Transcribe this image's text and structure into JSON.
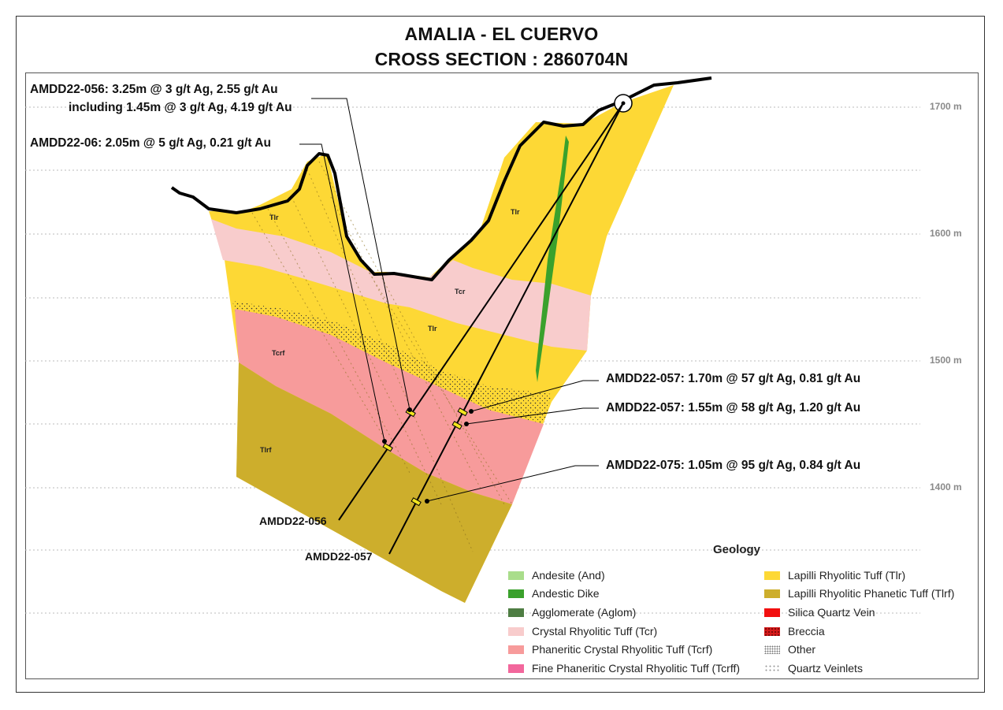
{
  "title_line1": "AMALIA - EL CUERVO",
  "title_line2": "CROSS SECTION : 2860704N",
  "elevations": [
    {
      "label": "1700 m",
      "value": 1700
    },
    {
      "label": "1600 m",
      "value": 1600
    },
    {
      "label": "1500 m",
      "value": 1500
    },
    {
      "label": "1400 m",
      "value": 1400
    }
  ],
  "annotations": {
    "amdd22_056_line1": "AMDD22-056:  3.25m @ 3 g/t Ag, 2.55 g/t Au",
    "amdd22_056_line2": "including 1.45m @ 3 g/t Ag, 4.19 g/t Au",
    "amdd22_06": "AMDD22-06:  2.05m @ 5 g/t Ag, 0.21 g/t Au",
    "amdd22_057_a": "AMDD22-057:  1.70m @ 57 g/t Ag, 0.81 g/t Au",
    "amdd22_057_b": "AMDD22-057: 1.55m @ 58 g/t Ag, 1.20 g/t Au",
    "amdd22_075": "AMDD22-075: 1.05m @ 95 g/t Ag, 0.84 g/t Au"
  },
  "drill_holes": {
    "hole_056": "AMDD22-056",
    "hole_057": "AMDD22-057"
  },
  "unit_labels": {
    "tlr_top": "Tlr",
    "tlr_right": "Tlr",
    "tlr_mid": "Tlr",
    "tcr": "Tcr",
    "tcrf": "Tcrf",
    "tlrf": "Tlrf"
  },
  "legend": {
    "title": "Geology",
    "items": [
      {
        "label": "Andesite (And)",
        "color": "#a9dd8b"
      },
      {
        "label": "Andestic Dike",
        "color": "#3aa12c"
      },
      {
        "label": "Agglomerate (Aglom)",
        "color": "#4e7d43"
      },
      {
        "label": "Crystal Rhyolitic Tuff (Tcr)",
        "color": "#f8cccc"
      },
      {
        "label": "Phaneritic Crystal Rhyolitic Tuff (Tcrf)",
        "color": "#f79b9b"
      },
      {
        "label": "Fine Phaneritic Crystal Rhyolitic Tuff (Tcrff)",
        "color": "#f2679c"
      },
      {
        "label": "Lapilli Rhyolitic Tuff (Tlr)",
        "color": "#fdd835"
      },
      {
        "label": "Lapilli Rhyolitic Phanetic Tuff (Tlrf)",
        "color": "#cdae2c"
      },
      {
        "label": "Silica Quartz Vein",
        "color": "#f20f0f"
      },
      {
        "label": "Breccia",
        "color": "#d51a1a"
      },
      {
        "label": "Other",
        "color": "#cccccc"
      },
      {
        "label": "Quartz Veinlets",
        "color": "#999999"
      }
    ]
  },
  "colors": {
    "tlr": "#fdd835",
    "tcr": "#f8cccc",
    "tcrf": "#f79b9b",
    "tlrf": "#cdae2c",
    "dike": "#3aa12c",
    "intercept": "#f2e51f"
  }
}
